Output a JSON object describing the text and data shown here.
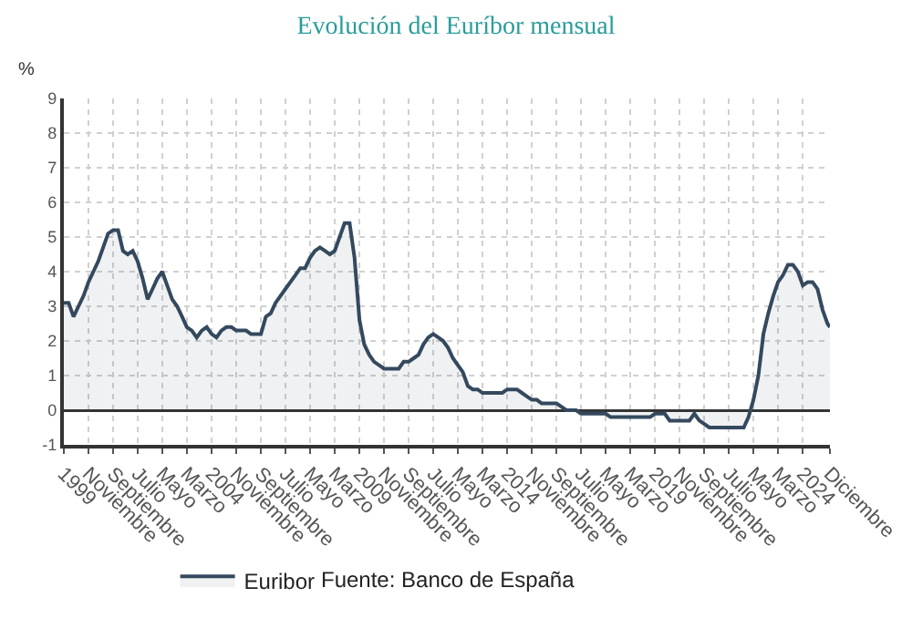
{
  "chart_data": {
    "type": "area",
    "title": "Evolución del Euríbor mensual",
    "ylabel": "%",
    "annotations": [
      "Fuente: Banco de España"
    ],
    "x": [
      "1999-01",
      "1999-03",
      "1999-05",
      "1999-07",
      "1999-09",
      "1999-11",
      "2000-01",
      "2000-03",
      "2000-05",
      "2000-07",
      "2000-09",
      "2000-11",
      "2001-01",
      "2001-03",
      "2001-05",
      "2001-07",
      "2001-09",
      "2001-11",
      "2002-01",
      "2002-03",
      "2002-05",
      "2002-07",
      "2002-09",
      "2002-11",
      "2003-01",
      "2003-03",
      "2003-05",
      "2003-07",
      "2003-09",
      "2003-11",
      "2004-01",
      "2004-03",
      "2004-05",
      "2004-07",
      "2004-09",
      "2004-11",
      "2005-01",
      "2005-03",
      "2005-05",
      "2005-07",
      "2005-09",
      "2005-11",
      "2006-01",
      "2006-03",
      "2006-05",
      "2006-07",
      "2006-09",
      "2006-11",
      "2007-01",
      "2007-03",
      "2007-05",
      "2007-07",
      "2007-09",
      "2007-11",
      "2008-01",
      "2008-03",
      "2008-05",
      "2008-07",
      "2008-09",
      "2008-11",
      "2009-01",
      "2009-03",
      "2009-05",
      "2009-07",
      "2009-09",
      "2009-11",
      "2010-01",
      "2010-03",
      "2010-05",
      "2010-07",
      "2010-09",
      "2010-11",
      "2011-01",
      "2011-03",
      "2011-05",
      "2011-07",
      "2011-09",
      "2011-11",
      "2012-01",
      "2012-03",
      "2012-05",
      "2012-07",
      "2012-09",
      "2012-11",
      "2013-01",
      "2013-03",
      "2013-05",
      "2013-07",
      "2013-09",
      "2013-11",
      "2014-01",
      "2014-03",
      "2014-05",
      "2014-07",
      "2014-09",
      "2014-11",
      "2015-01",
      "2015-03",
      "2015-05",
      "2015-07",
      "2015-09",
      "2015-11",
      "2016-01",
      "2016-03",
      "2016-05",
      "2016-07",
      "2016-09",
      "2016-11",
      "2017-01",
      "2017-03",
      "2017-05",
      "2017-07",
      "2017-09",
      "2017-11",
      "2018-01",
      "2018-03",
      "2018-05",
      "2018-07",
      "2018-09",
      "2018-11",
      "2019-01",
      "2019-03",
      "2019-05",
      "2019-07",
      "2019-09",
      "2019-11",
      "2020-01",
      "2020-03",
      "2020-05",
      "2020-07",
      "2020-09",
      "2020-11",
      "2021-01",
      "2021-03",
      "2021-05",
      "2021-07",
      "2021-09",
      "2021-11",
      "2022-01",
      "2022-03",
      "2022-05",
      "2022-07",
      "2022-09",
      "2022-11",
      "2023-01",
      "2023-03",
      "2023-05",
      "2023-07",
      "2023-09",
      "2023-11",
      "2024-01",
      "2024-03",
      "2024-05",
      "2024-07",
      "2024-09",
      "2024-11",
      "2024-12"
    ],
    "series": [
      {
        "name": "Euribor",
        "color": "#34495e",
        "values": [
          3.1,
          3.1,
          2.7,
          3.0,
          3.3,
          3.7,
          4.0,
          4.3,
          4.7,
          5.1,
          5.2,
          5.2,
          4.6,
          4.5,
          4.6,
          4.3,
          3.8,
          3.2,
          3.5,
          3.8,
          4.0,
          3.6,
          3.2,
          3.0,
          2.7,
          2.4,
          2.3,
          2.1,
          2.3,
          2.4,
          2.2,
          2.1,
          2.3,
          2.4,
          2.4,
          2.3,
          2.3,
          2.3,
          2.2,
          2.2,
          2.2,
          2.7,
          2.8,
          3.1,
          3.3,
          3.5,
          3.7,
          3.9,
          4.1,
          4.1,
          4.4,
          4.6,
          4.7,
          4.6,
          4.5,
          4.6,
          5.0,
          5.4,
          5.4,
          4.4,
          2.6,
          1.9,
          1.6,
          1.4,
          1.3,
          1.2,
          1.2,
          1.2,
          1.2,
          1.4,
          1.4,
          1.5,
          1.6,
          1.9,
          2.1,
          2.2,
          2.1,
          2.0,
          1.8,
          1.5,
          1.3,
          1.1,
          0.7,
          0.6,
          0.6,
          0.5,
          0.5,
          0.5,
          0.5,
          0.5,
          0.6,
          0.6,
          0.6,
          0.5,
          0.4,
          0.3,
          0.3,
          0.2,
          0.2,
          0.2,
          0.2,
          0.1,
          0.0,
          0.0,
          0.0,
          -0.1,
          -0.1,
          -0.1,
          -0.1,
          -0.1,
          -0.1,
          -0.2,
          -0.2,
          -0.2,
          -0.2,
          -0.2,
          -0.2,
          -0.2,
          -0.2,
          -0.2,
          -0.1,
          -0.1,
          -0.1,
          -0.3,
          -0.3,
          -0.3,
          -0.3,
          -0.3,
          -0.1,
          -0.3,
          -0.4,
          -0.5,
          -0.5,
          -0.5,
          -0.5,
          -0.5,
          -0.5,
          -0.5,
          -0.5,
          -0.2,
          0.3,
          1.0,
          2.2,
          2.8,
          3.3,
          3.7,
          3.9,
          4.2,
          4.2,
          4.0,
          3.6,
          3.7,
          3.7,
          3.5,
          2.9,
          2.5,
          2.4
        ]
      }
    ],
    "xlim": [
      "1999-01",
      "2024-12"
    ],
    "xticks": [
      {
        "value": "1999-01",
        "label": "1999"
      },
      {
        "value": "1999-11",
        "label": "Noviembre"
      },
      {
        "value": "2000-09",
        "label": "Septiembre"
      },
      {
        "value": "2001-07",
        "label": "Julio"
      },
      {
        "value": "2002-05",
        "label": "Mayo"
      },
      {
        "value": "2003-03",
        "label": "Marzo"
      },
      {
        "value": "2004-01",
        "label": "2004"
      },
      {
        "value": "2004-11",
        "label": "Noviembre"
      },
      {
        "value": "2005-09",
        "label": "Septiembre"
      },
      {
        "value": "2006-07",
        "label": "Julio"
      },
      {
        "value": "2007-05",
        "label": "Mayo"
      },
      {
        "value": "2008-03",
        "label": "Marzo"
      },
      {
        "value": "2009-01",
        "label": "2009"
      },
      {
        "value": "2009-11",
        "label": "Noviembre"
      },
      {
        "value": "2010-09",
        "label": "Septiembre"
      },
      {
        "value": "2011-07",
        "label": "Julio"
      },
      {
        "value": "2012-05",
        "label": "Mayo"
      },
      {
        "value": "2013-03",
        "label": "Marzo"
      },
      {
        "value": "2014-01",
        "label": "2014"
      },
      {
        "value": "2014-11",
        "label": "Noviembre"
      },
      {
        "value": "2015-09",
        "label": "Septiembre"
      },
      {
        "value": "2016-07",
        "label": "Julio"
      },
      {
        "value": "2017-05",
        "label": "Mayo"
      },
      {
        "value": "2018-03",
        "label": "Marzo"
      },
      {
        "value": "2019-01",
        "label": "2019"
      },
      {
        "value": "2019-11",
        "label": "Noviembre"
      },
      {
        "value": "2020-09",
        "label": "Septiembre"
      },
      {
        "value": "2021-07",
        "label": "Julio"
      },
      {
        "value": "2022-05",
        "label": "Mayo"
      },
      {
        "value": "2023-03",
        "label": "Marzo"
      },
      {
        "value": "2024-01",
        "label": "2024"
      },
      {
        "value": "2024-12",
        "label": "Diciembre"
      }
    ],
    "ylim": [
      -1,
      9
    ],
    "yticks": [
      -1,
      0,
      1,
      2,
      3,
      4,
      5,
      6,
      7,
      8,
      9
    ],
    "grid": true,
    "legend": "bottom"
  }
}
